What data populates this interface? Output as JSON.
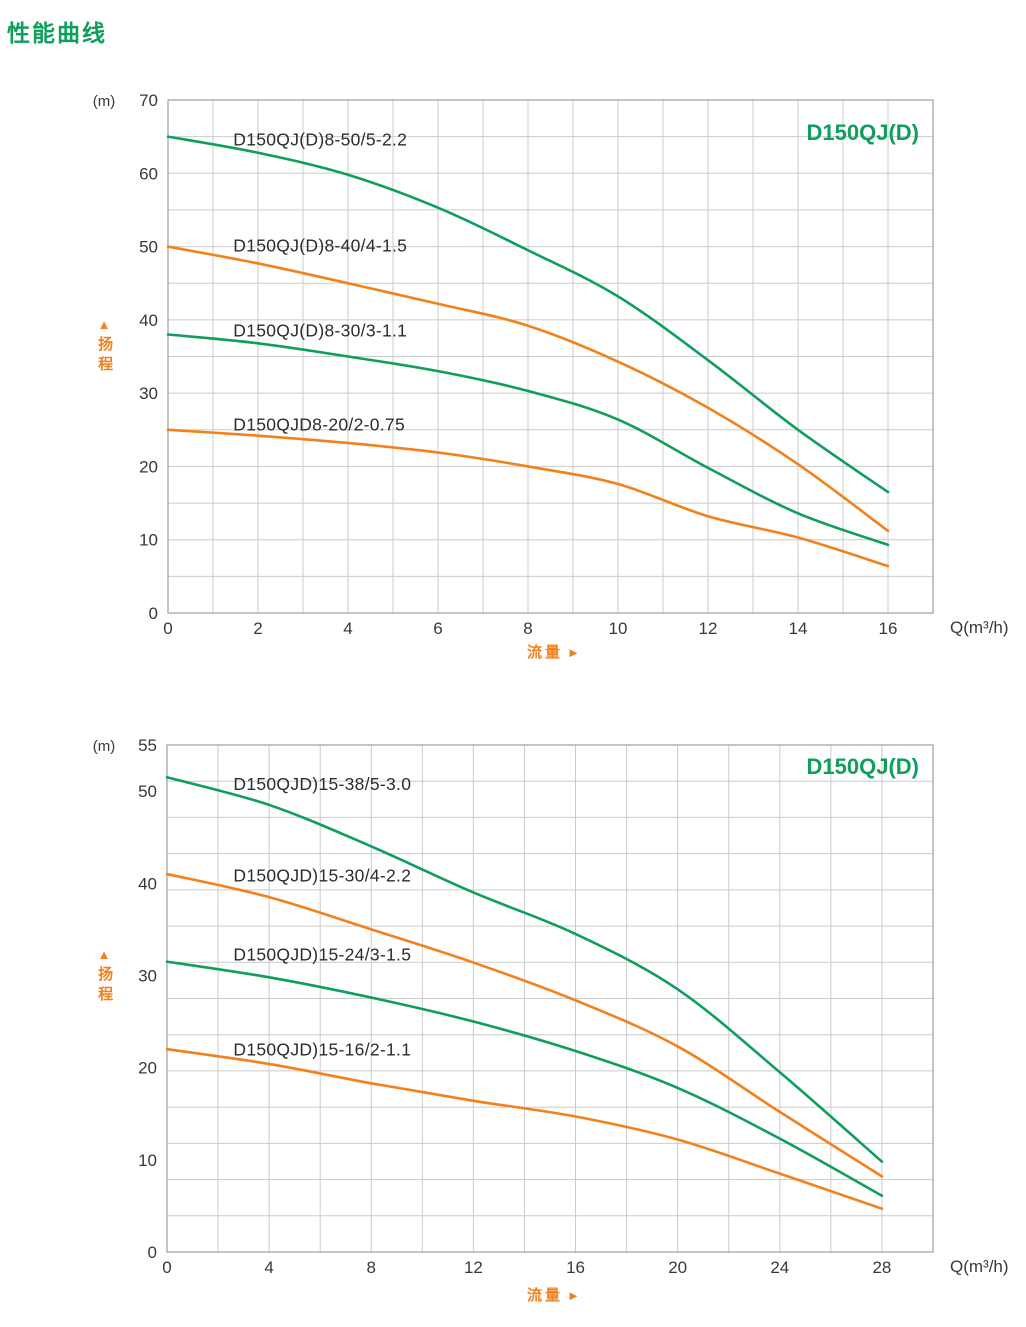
{
  "page": {
    "heading": "性能曲线"
  },
  "shared": {
    "colors": {
      "green": "#0f9e5c",
      "orange": "#f2811c",
      "grid": "#cbcbcb",
      "border": "#9e9e9e",
      "tick_text": "#383838",
      "label_text": "#2c2c2c"
    }
  },
  "chart_data": [
    {
      "type": "line",
      "title": "D150QJ(D)",
      "unit_label": "(m)",
      "x_axis_label": "Q(m³/h)",
      "flow_axis_label": "流量",
      "flow_arrow": "►",
      "head_axis_label": "扬程",
      "head_arrow": "▲",
      "xlim": [
        0,
        17
      ],
      "ylim": [
        0,
        70
      ],
      "x_ticks": [
        0,
        2,
        4,
        6,
        8,
        10,
        12,
        14,
        16
      ],
      "y_ticks": [
        0,
        10,
        20,
        30,
        40,
        50,
        60,
        70
      ],
      "grid": {
        "cols": 17,
        "rows": 14,
        "visible": true
      },
      "legend_position": "inline-curve-labels",
      "series": [
        {
          "name": "D150QJ(D)8-50/5-2.2",
          "color_key": "green",
          "x": [
            0,
            2,
            4,
            6,
            8,
            10,
            12,
            14,
            16
          ],
          "y": [
            65,
            62.8,
            59.8,
            55.3,
            49.5,
            43.2,
            34.5,
            25,
            16.5
          ],
          "label_x": 1.45,
          "label_y": 63.8
        },
        {
          "name": "D150QJ(D)8-40/4-1.5",
          "color_key": "orange",
          "x": [
            0,
            2,
            4,
            6,
            8,
            10,
            12,
            14,
            16
          ],
          "y": [
            50,
            47.7,
            45,
            42.2,
            39.2,
            34.3,
            28,
            20.3,
            11.2
          ],
          "label_x": 1.45,
          "label_y": 49.3
        },
        {
          "name": "D150QJ(D)8-30/3-1.1",
          "color_key": "green",
          "x": [
            0,
            2,
            4,
            6,
            8,
            10,
            12,
            14,
            16
          ],
          "y": [
            38,
            36.8,
            35,
            33,
            30.3,
            26.4,
            19.8,
            13.6,
            9.3
          ],
          "label_x": 1.45,
          "label_y": 37.7
        },
        {
          "name": "D150QJD8-20/2-0.75",
          "color_key": "orange",
          "x": [
            0,
            2,
            4,
            6,
            8,
            10,
            12,
            14,
            16
          ],
          "y": [
            25,
            24.2,
            23.2,
            21.9,
            20,
            17.6,
            13.2,
            10.3,
            6.4
          ],
          "label_x": 1.45,
          "label_y": 24.9
        }
      ]
    },
    {
      "type": "line",
      "title": "D150QJ(D)",
      "unit_label": "(m)",
      "x_axis_label": "Q(m³/h)",
      "flow_axis_label": "流量",
      "flow_arrow": "►",
      "head_axis_label": "扬程",
      "head_arrow": "▲",
      "xlim": [
        0,
        30
      ],
      "ylim": [
        0,
        55
      ],
      "x_ticks": [
        0,
        4,
        8,
        12,
        16,
        20,
        24,
        28
      ],
      "y_ticks": [
        0,
        10,
        20,
        30,
        40,
        50,
        55
      ],
      "grid": {
        "cols": 15,
        "rows": 14,
        "visible": true
      },
      "legend_position": "inline-curve-labels",
      "series": [
        {
          "name": "D150QJD)15-38/5-3.0",
          "color_key": "green",
          "x": [
            0,
            4,
            8,
            12,
            16,
            20,
            24,
            28
          ],
          "y": [
            51.5,
            48.5,
            44,
            39,
            34.5,
            28.5,
            19.5,
            9.8
          ],
          "label_x": 2.6,
          "label_y": 50.1
        },
        {
          "name": "D150QJD)15-30/4-2.2",
          "color_key": "orange",
          "x": [
            0,
            4,
            8,
            12,
            16,
            20,
            24,
            28
          ],
          "y": [
            41,
            38.5,
            35,
            31.4,
            27.3,
            22.3,
            15.2,
            8.2
          ],
          "label_x": 2.6,
          "label_y": 40.2
        },
        {
          "name": "D150QJD)15-24/3-1.5",
          "color_key": "green",
          "x": [
            0,
            4,
            8,
            12,
            16,
            20,
            24,
            28
          ],
          "y": [
            31.5,
            29.8,
            27.6,
            25,
            21.8,
            17.8,
            12.3,
            6.1
          ],
          "label_x": 2.6,
          "label_y": 31.6
        },
        {
          "name": "D150QJD)15-16/2-1.1",
          "color_key": "orange",
          "x": [
            0,
            4,
            8,
            12,
            16,
            20,
            24,
            28
          ],
          "y": [
            22,
            20.4,
            18.3,
            16.4,
            14.7,
            12.2,
            8.5,
            4.7
          ],
          "label_x": 2.6,
          "label_y": 21.3
        }
      ]
    }
  ]
}
